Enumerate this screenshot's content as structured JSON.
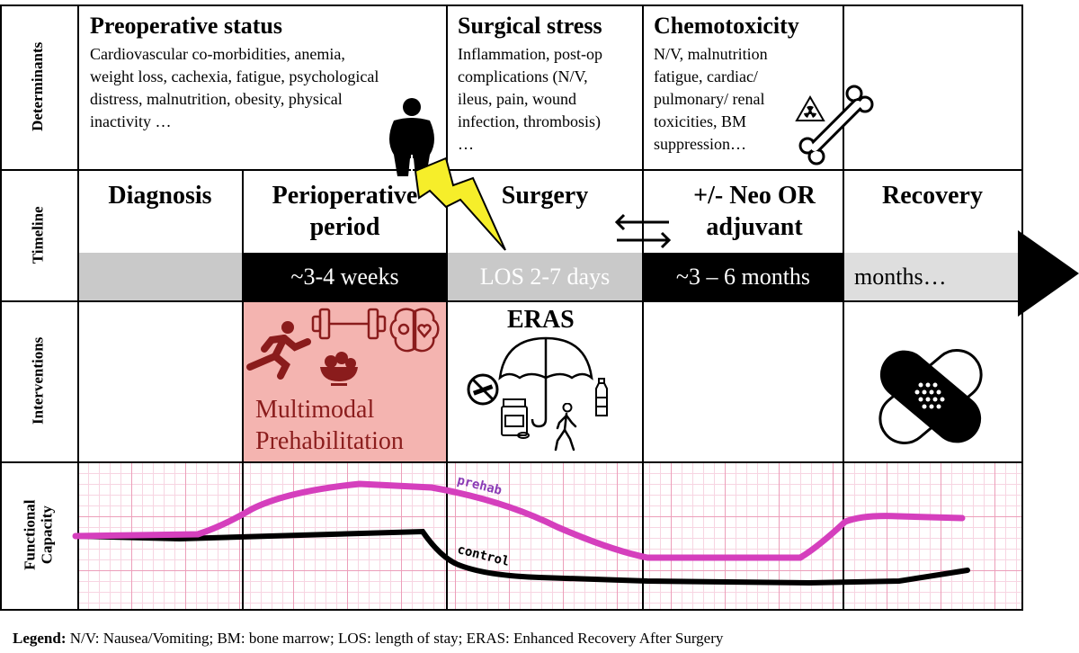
{
  "row_labels": {
    "determinants": "Determinants",
    "timeline": "Timeline",
    "interventions": "Interventions",
    "functional_capacity": "Functional Capacity"
  },
  "determinants": {
    "preoperative": {
      "title": "Preoperative status",
      "lines": [
        "Cardiovascular co-morbidities, anemia,",
        "weight loss, cachexia, fatigue, psychological",
        "distress, malnutrition, obesity, physical",
        "inactivity …"
      ]
    },
    "surgical": {
      "title": "Surgical stress",
      "lines": [
        "Inflammation, post-op",
        "complications (N/V,",
        "ileus, pain, wound",
        "infection, thrombosis)",
        "…"
      ]
    },
    "chemo": {
      "title": "Chemotoxicity",
      "lines": [
        "N/V, malnutrition",
        "fatigue, cardiac/",
        "pulmonary/ renal",
        "toxicities, BM",
        "suppression…"
      ]
    }
  },
  "timeline": {
    "headings": {
      "diagnosis": "Diagnosis",
      "perioperative_1": "Perioperative",
      "perioperative_2": "period",
      "surgery": "Surgery",
      "neo_1": "+/- Neo OR",
      "neo_2": "adjuvant",
      "recovery": "Recovery"
    },
    "durations": {
      "perioperative": "~3-4 weeks",
      "surgery": "LOS 2-7 days",
      "neo": "~3 – 6 months",
      "recovery": "months…"
    }
  },
  "interventions": {
    "prehab_1": "Multimodal",
    "prehab_2": "Prehabilitation",
    "eras": "ERAS"
  },
  "functional": {
    "prehab_label": "prehab",
    "control_label": "control"
  },
  "legend": {
    "label": "Legend:",
    "text": " N/V: Nausea/Vomiting; BM: bone marrow; LOS: length of stay; ERAS: Enhanced Recovery After Surgery"
  },
  "colors": {
    "prehab_line": "#d53fbd",
    "control_line": "#000000",
    "prehab_cell": "#f4b4b0",
    "prehab_text": "#8a1c1c",
    "grid_pink": "#f2bfd0",
    "bar_grey": "#c9c9c9",
    "bar_light": "#dedede",
    "bolt": "#f6ee2a"
  }
}
